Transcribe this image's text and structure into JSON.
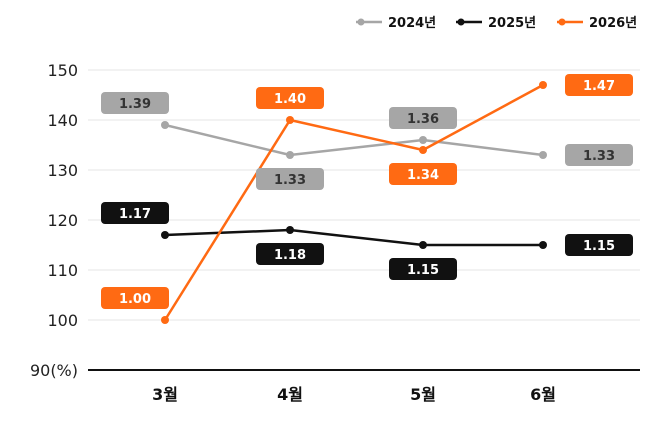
{
  "chart_data": {
    "type": "line",
    "categories": [
      "3월",
      "4월",
      "5월",
      "6월"
    ],
    "y_unit": "(%)",
    "ylim": [
      90,
      150
    ],
    "yticks": [
      90,
      100,
      110,
      120,
      130,
      140,
      150
    ],
    "grid": true,
    "legend_position": "top-right",
    "series": [
      {
        "name": "2024년",
        "color": "#a6a6a6",
        "values": [
          139,
          133,
          136,
          133
        ],
        "labels": [
          "1.39",
          "1.33",
          "1.36",
          "1.33"
        ],
        "label_side": [
          "above",
          "below",
          "above",
          "right"
        ]
      },
      {
        "name": "2025년",
        "color": "#111111",
        "values": [
          117,
          118,
          115,
          115
        ],
        "labels": [
          "1.17",
          "1.18",
          "1.15",
          "1.15"
        ],
        "label_side": [
          "above",
          "below",
          "below",
          "right"
        ]
      },
      {
        "name": "2026년",
        "color": "#ff6a13",
        "values": [
          100,
          140,
          134,
          147
        ],
        "labels": [
          "1.00",
          "1.40",
          "1.34",
          "1.47"
        ],
        "label_side": [
          "above",
          "above",
          "below",
          "right"
        ]
      }
    ]
  }
}
